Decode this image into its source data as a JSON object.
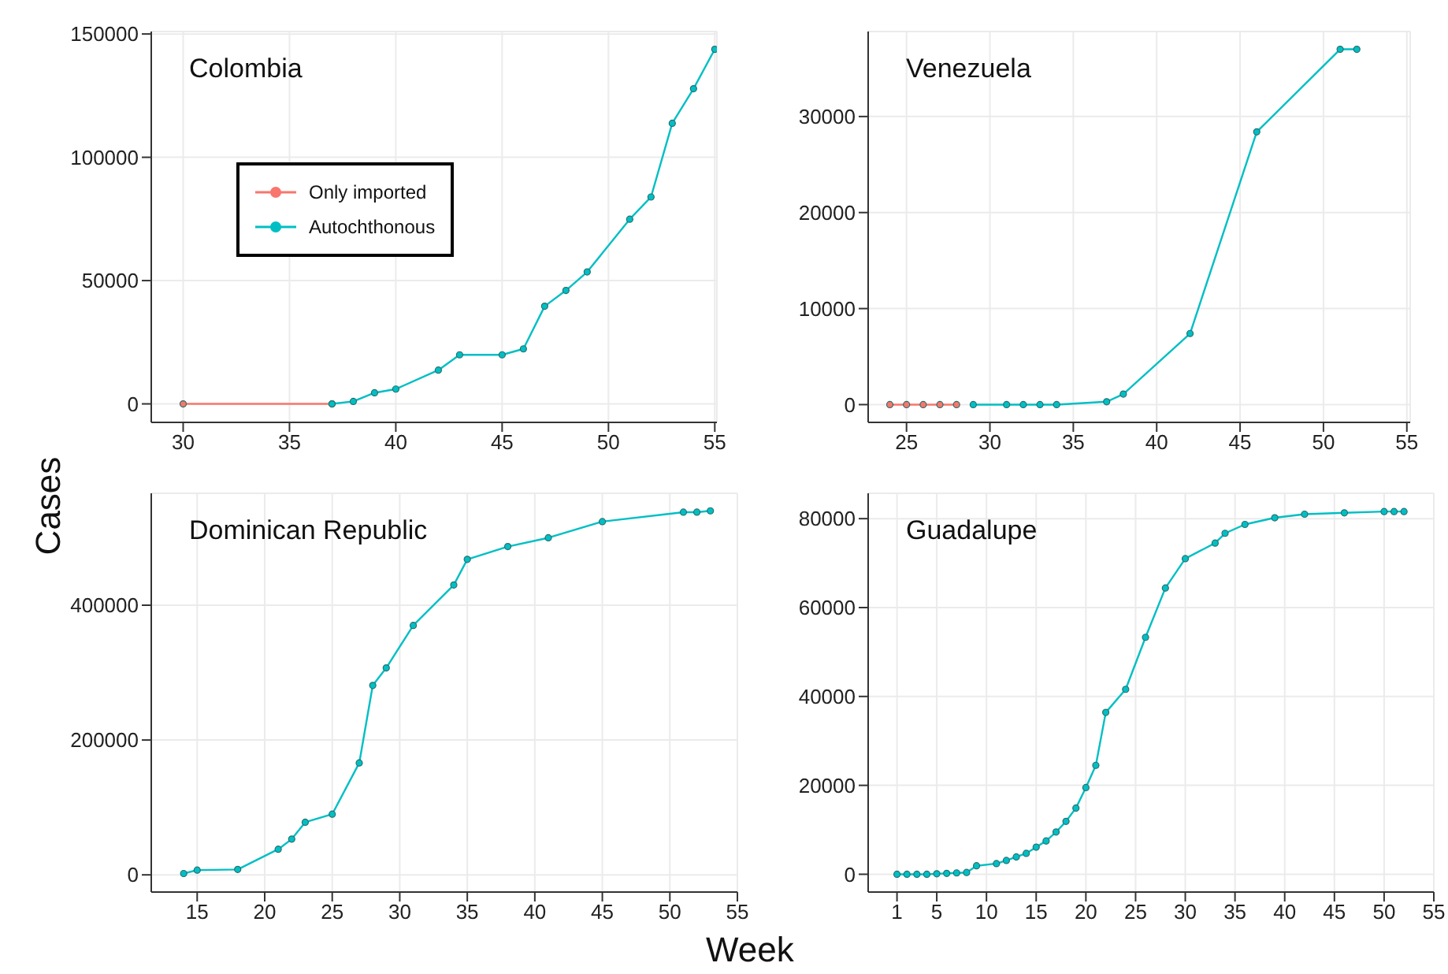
{
  "chart_data": [
    {
      "type": "line",
      "title": "Colombia",
      "ylabel": "Cases",
      "xlim": [
        28.5,
        55.1
      ],
      "xticks": [
        30,
        35,
        40,
        45,
        50,
        55
      ],
      "ylim": [
        -7500,
        151000
      ],
      "yticks": [
        0,
        50000,
        100000,
        150000
      ],
      "grid": true,
      "legend": "top left",
      "marker": "circle",
      "line_style": "solid",
      "series": [
        {
          "name": "Only imported",
          "color": "#f8766d",
          "x": [
            30,
            37
          ],
          "values": [
            0,
            0
          ]
        },
        {
          "name": "Autochthonous",
          "color": "#00bfc4",
          "x": [
            37,
            38,
            39,
            40,
            42,
            43,
            45,
            46,
            47,
            48,
            49,
            51,
            52,
            53,
            54,
            55
          ],
          "values": [
            0,
            1000,
            4500,
            6000,
            13700,
            19900,
            19900,
            22300,
            39600,
            46000,
            53500,
            74900,
            83900,
            113800,
            127800,
            143800
          ]
        }
      ]
    },
    {
      "type": "line",
      "title": "Venezuela",
      "xlim": [
        22.7,
        55.2
      ],
      "xticks": [
        25,
        30,
        35,
        40,
        45,
        50,
        55
      ],
      "ylim": [
        -1850,
        38850
      ],
      "yticks": [
        0,
        10000,
        20000,
        30000
      ],
      "grid": true,
      "marker": "circle",
      "line_style": "solid",
      "series": [
        {
          "color": "#f8766d",
          "x": [
            24,
            25,
            26,
            27,
            28
          ],
          "values": [
            0,
            0,
            0,
            0,
            0
          ]
        },
        {
          "color": "#00bfc4",
          "x": [
            29,
            31,
            32,
            33,
            34,
            37,
            38,
            42,
            46,
            51,
            52
          ],
          "values": [
            0,
            0,
            0,
            0,
            0,
            300,
            1100,
            7400,
            28400,
            37000,
            37000
          ]
        }
      ]
    },
    {
      "type": "line",
      "title": "Dominican Republic",
      "xlabel": "Week",
      "xlim": [
        11.6,
        55
      ],
      "xticks": [
        15,
        20,
        25,
        30,
        35,
        40,
        45,
        50,
        55
      ],
      "ylim": [
        -25500,
        566000
      ],
      "yticks": [
        0,
        200000,
        400000
      ],
      "grid": true,
      "marker": "circle",
      "line_style": "solid",
      "series": [
        {
          "color": "#00bfc4",
          "x": [
            14,
            15,
            18,
            21,
            22,
            23,
            25,
            27,
            28,
            29,
            31,
            34,
            35,
            38,
            41,
            45,
            51,
            52,
            53
          ],
          "values": [
            2000,
            7000,
            8000,
            38000,
            53000,
            78000,
            90000,
            166000,
            281000,
            307000,
            370000,
            430000,
            468000,
            487000,
            500000,
            524000,
            538000,
            538000,
            540000
          ]
        }
      ]
    },
    {
      "type": "line",
      "title": "Guadalupe",
      "xlim": [
        -1.9,
        55
      ],
      "xticks": [
        1,
        5,
        10,
        15,
        20,
        25,
        30,
        35,
        40,
        45,
        50,
        55
      ],
      "ylim": [
        -4000,
        85700
      ],
      "yticks": [
        0,
        20000,
        40000,
        60000,
        80000
      ],
      "grid": true,
      "marker": "circle",
      "line_style": "solid",
      "series": [
        {
          "color": "#00bfc4",
          "x": [
            1,
            2,
            3,
            4,
            5,
            6,
            7,
            8,
            9,
            11,
            12,
            13,
            14,
            15,
            16,
            17,
            18,
            19,
            20,
            21,
            22,
            24,
            26,
            28,
            30,
            33,
            34,
            36,
            39,
            42,
            46,
            50,
            51,
            52
          ],
          "values": [
            0,
            0,
            0,
            0,
            100,
            200,
            300,
            400,
            1900,
            2400,
            3100,
            3900,
            4700,
            6100,
            7500,
            9500,
            11900,
            14900,
            19500,
            24500,
            36400,
            41600,
            53300,
            64400,
            71000,
            74500,
            76700,
            78700,
            80200,
            81000,
            81300,
            81600,
            81600,
            81600
          ]
        }
      ]
    }
  ]
}
